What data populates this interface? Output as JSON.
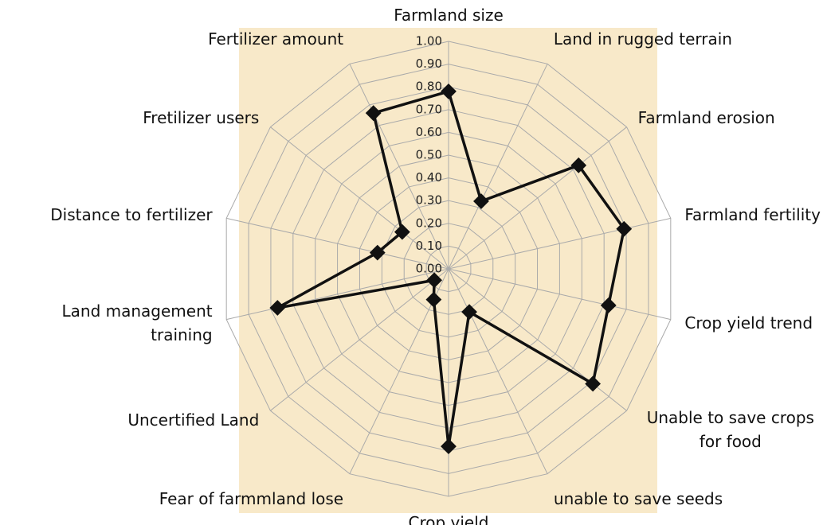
{
  "chart_data": {
    "type": "radar",
    "categories": [
      "Farmland size",
      "Land in rugged terrain",
      "Farmland erosion",
      "Farmland fertility",
      "Crop yield trend",
      "Unable to save crops for food",
      "unable to save seeds",
      "Crop yield",
      "Fear of farmmland lose",
      "Uncertified Land",
      "Land management training",
      "Distance to fertilizer",
      "Fretilizer users",
      "Fertilizer amount"
    ],
    "series": [
      {
        "color": "#111111",
        "values": [
          0.78,
          0.33,
          0.73,
          0.79,
          0.72,
          0.81,
          0.21,
          0.78,
          0.15,
          0.08,
          0.77,
          0.32,
          0.26,
          0.76
        ]
      }
    ],
    "ylim": [
      0,
      1
    ],
    "yticks": [
      {
        "value": 0,
        "label": "0.00"
      },
      {
        "value": 0.1,
        "label": "0.10"
      },
      {
        "value": 0.2,
        "label": "0.20"
      },
      {
        "value": 0.3,
        "label": "0.30"
      },
      {
        "value": 0.4,
        "label": "0.40"
      },
      {
        "value": 0.5,
        "label": "0.50"
      },
      {
        "value": 0.6,
        "label": "0.60"
      },
      {
        "value": 0.7,
        "label": "0.70"
      },
      {
        "value": 0.8,
        "label": "0.80"
      },
      {
        "value": 0.9,
        "label": "0.90"
      },
      {
        "value": 1,
        "label": "1.00"
      }
    ],
    "grid": true
  }
}
